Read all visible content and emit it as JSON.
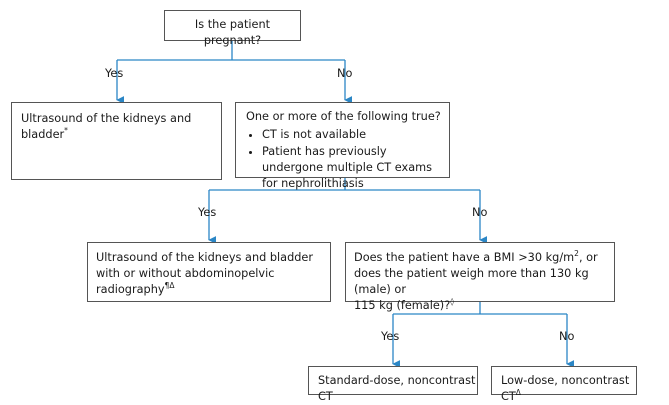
{
  "flowchart": {
    "root": {
      "question": "Is the patient pregnant?"
    },
    "branch1": {
      "yes_label": "Yes",
      "no_label": "No"
    },
    "pregnant_yes": {
      "text": "Ultrasound of the kidneys and bladder",
      "footnote": "*"
    },
    "pregnant_no": {
      "question": "One or more of the following true?",
      "items": [
        "CT is not available",
        "Patient has previously undergone multiple CT exams for nephrolithiasis"
      ]
    },
    "branch2": {
      "yes_label": "Yes",
      "no_label": "No"
    },
    "criteria_yes": {
      "line1": "Ultrasound of the kidneys and bladder",
      "line2": "with or without abdominopelvic radiography",
      "footnote": "¶Δ"
    },
    "criteria_no": {
      "line1": "Does the patient have a BMI >30 kg/m",
      "exp": "2",
      "line1_end": ", or",
      "line2": "does the patient weigh more than 130 kg (male) or",
      "line3": "115 kg (female)?",
      "footnote": "◊"
    },
    "branch3": {
      "yes_label": "Yes",
      "no_label": "No"
    },
    "obese_yes": {
      "text": "Standard-dose, noncontrast CT"
    },
    "obese_no": {
      "text": "Low-dose, noncontrast CT",
      "footnote": "Δ"
    }
  },
  "colors": {
    "connector": "#2b86c5",
    "box_border": "#555555",
    "text": "#1a1a1a"
  }
}
